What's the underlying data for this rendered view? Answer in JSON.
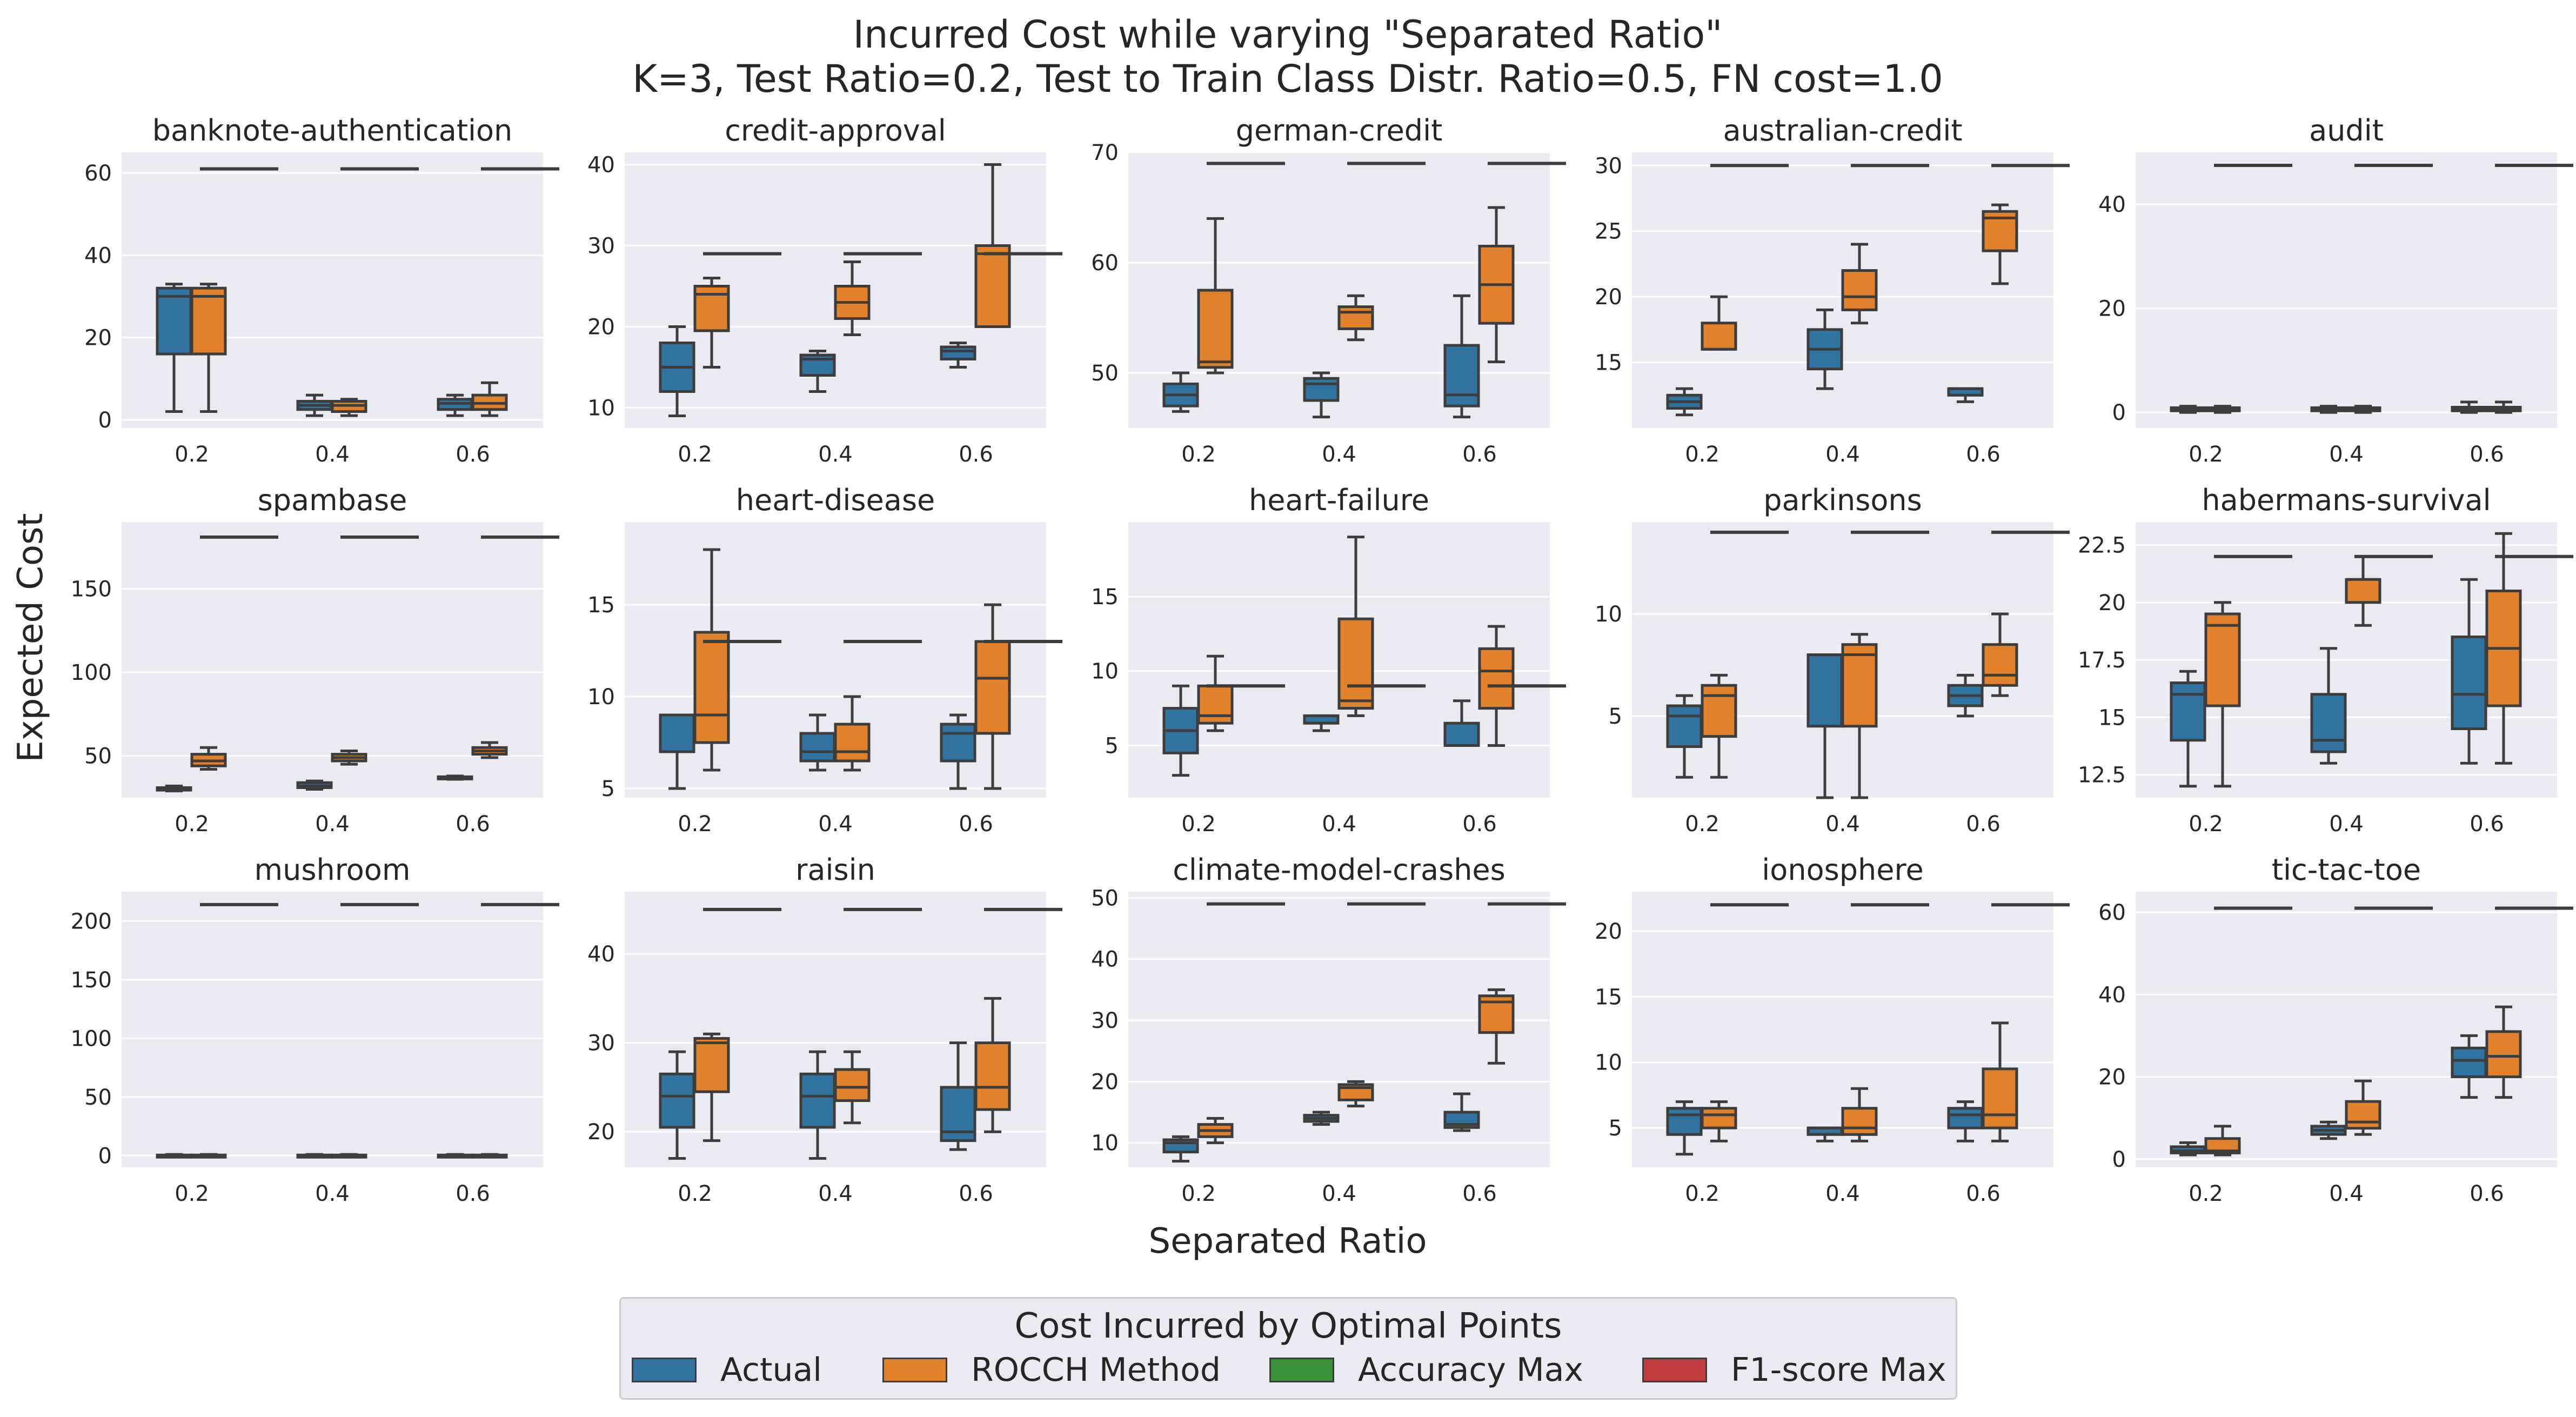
{
  "figure": {
    "title_line1": "Incurred Cost while varying \"Separated Ratio\"",
    "title_line2": "K=3, Test Ratio=0.2, Test to Train Class Distr. Ratio=0.5, FN cost=1.0",
    "xlabel": "Separated Ratio",
    "ylabel": "Expected Cost"
  },
  "legend": {
    "title": "Cost Incurred by Optimal Points",
    "items": [
      {
        "label": "Actual",
        "color": "#3274a1"
      },
      {
        "label": "ROCCH Method",
        "color": "#e1812c"
      },
      {
        "label": "Accuracy Max",
        "color": "#3a923a"
      },
      {
        "label": "F1-score Max",
        "color": "#c03d3e"
      }
    ]
  },
  "colors": {
    "panel_bg": "#eaeaf2",
    "grid": "#ffffff",
    "actual": "#3274a1",
    "rocch": "#e1812c",
    "whisker": "#3d3d3d"
  },
  "chart_data": {
    "type": "box",
    "categories": [
      "0.2",
      "0.4",
      "0.6"
    ],
    "panels": [
      {
        "title": "banknote-authentication",
        "ylim": [
          -2,
          65
        ],
        "yticks": [
          0,
          20,
          40,
          60
        ],
        "actual": [
          [
            2,
            16,
            30,
            32,
            33
          ],
          [
            1,
            2.5,
            3.5,
            4.5,
            6
          ],
          [
            1,
            2.5,
            4,
            5,
            6
          ]
        ],
        "rocch": [
          [
            2,
            16,
            30,
            32,
            33
          ],
          [
            1,
            2,
            3.5,
            4.5,
            5
          ],
          [
            1,
            2.5,
            4,
            6,
            9
          ]
        ],
        "ref": [
          61,
          61,
          61
        ]
      },
      {
        "title": "credit-approval",
        "ylim": [
          7.5,
          41.5
        ],
        "yticks": [
          10,
          20,
          30,
          40
        ],
        "actual": [
          [
            9,
            12,
            15,
            18,
            20
          ],
          [
            12,
            14,
            16,
            16.5,
            17
          ],
          [
            15,
            16,
            17,
            17.5,
            18
          ]
        ],
        "rocch": [
          [
            15,
            19.5,
            24,
            25,
            26
          ],
          [
            19,
            21,
            23,
            25,
            28
          ],
          [
            20,
            20,
            29,
            30,
            40
          ]
        ],
        "ref": [
          29,
          29,
          29
        ]
      },
      {
        "title": "german-credit",
        "ylim": [
          45,
          70
        ],
        "yticks": [
          50,
          60,
          70
        ],
        "actual": [
          [
            46.5,
            47,
            48,
            49,
            50
          ],
          [
            46,
            47.5,
            49,
            49.5,
            50
          ],
          [
            46,
            47,
            48,
            52.5,
            57
          ]
        ],
        "rocch": [
          [
            50,
            50.5,
            51,
            57.5,
            64
          ],
          [
            53,
            54,
            55.5,
            56,
            57
          ],
          [
            51,
            54.5,
            58,
            61.5,
            65
          ]
        ],
        "ref": [
          69,
          69,
          69
        ]
      },
      {
        "title": "australian-credit",
        "ylim": [
          10,
          31
        ],
        "yticks": [
          15,
          20,
          25,
          30
        ],
        "actual": [
          [
            11,
            11.5,
            12,
            12.5,
            13
          ],
          [
            13,
            14.5,
            16,
            17.5,
            19
          ],
          [
            12,
            12.5,
            13,
            13,
            13
          ]
        ],
        "rocch": [
          [
            16,
            16,
            16,
            18,
            20
          ],
          [
            18,
            19,
            20,
            22,
            24
          ],
          [
            21,
            23.5,
            26,
            26.5,
            27
          ]
        ],
        "ref": [
          30,
          30,
          30
        ]
      },
      {
        "title": "audit",
        "ylim": [
          -3,
          50
        ],
        "yticks": [
          0,
          20,
          40
        ],
        "actual": [
          [
            0,
            0.3,
            0.6,
            0.9,
            1.2
          ],
          [
            0,
            0.3,
            0.6,
            0.9,
            1.2
          ],
          [
            0,
            0.3,
            0.6,
            1,
            2
          ]
        ],
        "rocch": [
          [
            0,
            0.3,
            0.6,
            0.9,
            1.2
          ],
          [
            0,
            0.3,
            0.6,
            0.9,
            1.2
          ],
          [
            0,
            0.3,
            0.6,
            1,
            2
          ]
        ],
        "ref": [
          47.5,
          47.5,
          47.5
        ]
      },
      {
        "title": "spambase",
        "ylim": [
          25,
          190
        ],
        "yticks": [
          50,
          100,
          150
        ],
        "actual": [
          [
            29,
            29.5,
            30,
            31,
            32
          ],
          [
            30,
            31,
            32,
            34,
            35
          ],
          [
            36,
            36.5,
            37,
            37.5,
            38
          ]
        ],
        "rocch": [
          [
            42,
            44,
            47,
            51,
            55
          ],
          [
            45,
            47,
            49,
            51,
            53
          ],
          [
            49,
            51,
            53,
            55,
            58
          ]
        ],
        "ref": [
          181,
          181,
          181
        ]
      },
      {
        "title": "heart-disease",
        "ylim": [
          4.5,
          19.5
        ],
        "yticks": [
          5,
          10,
          15
        ],
        "actual": [
          [
            5,
            7,
            9,
            9,
            9
          ],
          [
            6,
            6.5,
            7,
            8,
            9
          ],
          [
            5,
            6.5,
            8,
            8.5,
            9
          ]
        ],
        "rocch": [
          [
            6,
            7.5,
            9,
            13.5,
            18
          ],
          [
            6,
            6.5,
            7,
            8.5,
            10
          ],
          [
            5,
            8,
            11,
            13,
            15
          ]
        ],
        "ref": [
          13,
          13,
          13
        ]
      },
      {
        "title": "heart-failure",
        "ylim": [
          1.5,
          20
        ],
        "yticks": [
          5,
          10,
          15
        ],
        "actual": [
          [
            3,
            4.5,
            6,
            7.5,
            9
          ],
          [
            6,
            6.5,
            6.5,
            7,
            7
          ],
          [
            5,
            5,
            5,
            6.5,
            8
          ]
        ],
        "rocch": [
          [
            6,
            6.5,
            7,
            9,
            11
          ],
          [
            7,
            7.5,
            8,
            13.5,
            19
          ],
          [
            5,
            7.5,
            10,
            11.5,
            13
          ]
        ],
        "ref": [
          9,
          9,
          9
        ]
      },
      {
        "title": "parkinsons",
        "ylim": [
          1,
          14.5
        ],
        "yticks": [
          5,
          10
        ],
        "actual": [
          [
            2,
            3.5,
            5,
            5.5,
            6
          ],
          [
            1,
            4.5,
            8,
            8,
            8
          ],
          [
            5,
            5.5,
            6,
            6.5,
            7
          ]
        ],
        "rocch": [
          [
            2,
            4,
            6,
            6.5,
            7
          ],
          [
            1,
            4.5,
            8,
            8.5,
            9
          ],
          [
            6,
            6.5,
            7,
            8.5,
            10
          ]
        ],
        "ref": [
          14,
          14,
          14
        ]
      },
      {
        "title": "habermans-survival",
        "ylim": [
          11.5,
          23.5
        ],
        "yticks": [
          12.5,
          15.0,
          17.5,
          20.0,
          22.5
        ],
        "actual": [
          [
            12,
            14,
            16,
            16.5,
            17
          ],
          [
            13,
            13.5,
            14,
            16,
            18
          ],
          [
            13,
            14.5,
            16,
            18.5,
            21
          ]
        ],
        "rocch": [
          [
            12,
            15.5,
            19,
            19.5,
            20
          ],
          [
            19,
            20,
            21,
            21,
            22
          ],
          [
            13,
            15.5,
            18,
            20.5,
            23
          ]
        ],
        "ref": [
          22,
          22,
          22
        ]
      },
      {
        "title": "mushroom",
        "ylim": [
          -10,
          225
        ],
        "yticks": [
          0,
          50,
          100,
          150,
          200
        ],
        "actual": [
          [
            0,
            0,
            0,
            0.5,
            1
          ],
          [
            0,
            0,
            0,
            0.5,
            1
          ],
          [
            0,
            0,
            0,
            0.5,
            1
          ]
        ],
        "rocch": [
          [
            0,
            0,
            0,
            0.5,
            1
          ],
          [
            0,
            0,
            0,
            0.5,
            1
          ],
          [
            0,
            0,
            0,
            0.5,
            1
          ]
        ],
        "ref": [
          214,
          214,
          214
        ]
      },
      {
        "title": "raisin",
        "ylim": [
          16,
          47
        ],
        "yticks": [
          20,
          30,
          40
        ],
        "actual": [
          [
            17,
            20.5,
            24,
            26.5,
            29
          ],
          [
            17,
            20.5,
            24,
            26.5,
            29
          ],
          [
            18,
            19,
            20,
            25,
            30
          ]
        ],
        "rocch": [
          [
            19,
            24.5,
            30,
            30.5,
            31
          ],
          [
            21,
            23.5,
            25,
            27,
            29
          ],
          [
            20,
            22.5,
            25,
            30,
            35
          ]
        ],
        "ref": [
          45,
          45,
          45
        ]
      },
      {
        "title": "climate-model-crashes",
        "ylim": [
          6,
          51
        ],
        "yticks": [
          10,
          20,
          30,
          40,
          50
        ],
        "actual": [
          [
            7,
            8.5,
            10,
            10.5,
            11
          ],
          [
            13,
            13.5,
            14,
            14.5,
            15
          ],
          [
            12,
            12.5,
            13,
            15,
            18
          ]
        ],
        "rocch": [
          [
            10,
            11,
            12,
            13,
            14
          ],
          [
            16,
            17,
            19,
            19.5,
            20
          ],
          [
            23,
            28,
            33,
            34,
            35
          ]
        ],
        "ref": [
          49,
          49,
          49
        ]
      },
      {
        "title": "ionosphere",
        "ylim": [
          2,
          23
        ],
        "yticks": [
          5,
          10,
          15,
          20
        ],
        "actual": [
          [
            3,
            4.5,
            6,
            6.5,
            7
          ],
          [
            4,
            4.5,
            5,
            5,
            5
          ],
          [
            4,
            5,
            6,
            6.5,
            7
          ]
        ],
        "rocch": [
          [
            4,
            5,
            6,
            6.5,
            7
          ],
          [
            4,
            4.5,
            5,
            6.5,
            8
          ],
          [
            4,
            5,
            6,
            9.5,
            13
          ]
        ],
        "ref": [
          22,
          22,
          22
        ]
      },
      {
        "title": "tic-tac-toe",
        "ylim": [
          -2,
          65
        ],
        "yticks": [
          0,
          20,
          40,
          60
        ],
        "actual": [
          [
            1,
            1.5,
            2,
            3,
            4
          ],
          [
            5,
            6,
            7,
            8,
            9
          ],
          [
            15,
            20,
            24,
            27,
            30
          ]
        ],
        "rocch": [
          [
            1,
            1.5,
            2,
            5,
            8
          ],
          [
            6,
            7.5,
            9,
            14,
            19
          ],
          [
            15,
            20,
            25,
            31,
            37
          ]
        ],
        "ref": [
          61,
          61,
          61
        ]
      }
    ]
  }
}
